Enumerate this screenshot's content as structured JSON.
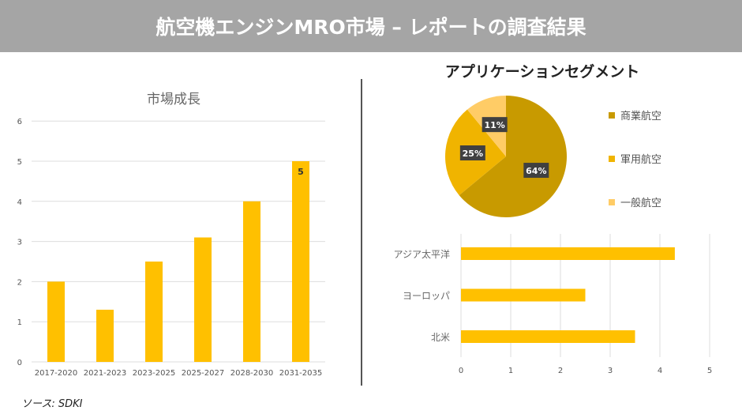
{
  "header": {
    "title": "航空機エンジンMRO市場 – レポートの調査結果"
  },
  "source": "ソース: SDKI",
  "chart_data": [
    {
      "type": "bar",
      "title": "市場成長",
      "categories": [
        "2017-2020",
        "2021-2023",
        "2023-2025",
        "2025-2027",
        "2028-2030",
        "2031-2035"
      ],
      "values": [
        2,
        1.3,
        2.5,
        3.1,
        4,
        5
      ],
      "ylim": [
        0,
        6
      ],
      "yticks": [
        0,
        1,
        2,
        3,
        4,
        5,
        6
      ],
      "data_labels": {
        "5": "5"
      },
      "grid": true,
      "color": "#FFC000"
    },
    {
      "type": "pie",
      "title": "アプリケーションセグメント",
      "labels": [
        "商業航空",
        "軍用航空",
        "一般航空"
      ],
      "values": [
        64,
        25,
        11
      ],
      "data_labels": [
        "64%",
        "25%",
        "11%"
      ],
      "colors": [
        "#C89A00",
        "#F0B400",
        "#FFCC66"
      ],
      "legend": "right"
    },
    {
      "type": "bar",
      "orientation": "horizontal",
      "categories": [
        "アジア太平洋",
        "ヨーロッパ",
        "北米"
      ],
      "values": [
        4.3,
        2.5,
        3.5
      ],
      "xlim": [
        0,
        5
      ],
      "xticks": [
        0,
        1,
        2,
        3,
        4,
        5
      ],
      "grid": true,
      "color": "#FFC000"
    }
  ]
}
